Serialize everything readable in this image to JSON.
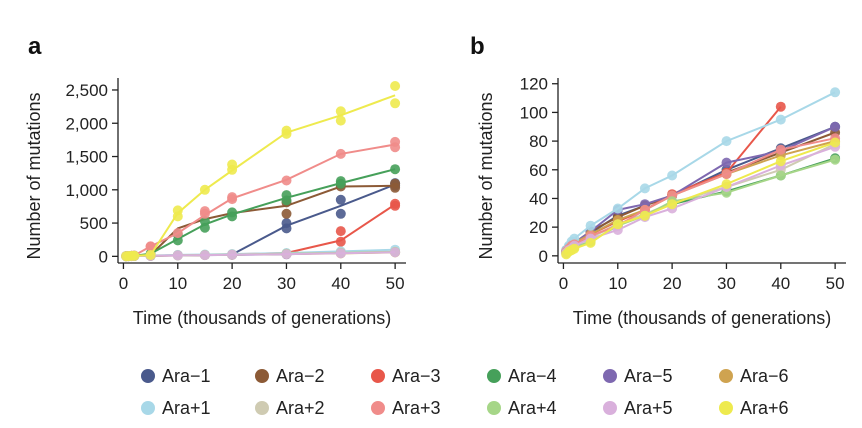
{
  "legend": {
    "rows": [
      [
        {
          "name": "Ara−1",
          "color": "#4a5a8c"
        },
        {
          "name": "Ara−2",
          "color": "#8c5a36"
        },
        {
          "name": "Ara−3",
          "color": "#e8574a"
        },
        {
          "name": "Ara−4",
          "color": "#46a05a"
        },
        {
          "name": "Ara−5",
          "color": "#7e68b0"
        },
        {
          "name": "Ara−6",
          "color": "#cfa350"
        }
      ],
      [
        {
          "name": "Ara+1",
          "color": "#a8d8e8"
        },
        {
          "name": "Ara+2",
          "color": "#cfcbb2"
        },
        {
          "name": "Ara+3",
          "color": "#f08c8a"
        },
        {
          "name": "Ara+4",
          "color": "#a6d688"
        },
        {
          "name": "Ara+5",
          "color": "#d9b0dc"
        },
        {
          "name": "Ara+6",
          "color": "#eeea4e"
        }
      ]
    ]
  },
  "chart_data": [
    {
      "panel": "a",
      "type": "line",
      "xlabel": "Time (thousands of generations)",
      "ylabel": "Number of mutations",
      "xlim": [
        -1,
        52
      ],
      "ylim": [
        -100,
        2680
      ],
      "xticks": [
        0,
        10,
        20,
        30,
        40,
        50
      ],
      "yticks": [
        0,
        500,
        1000,
        1500,
        2000,
        2500
      ],
      "ytick_labels": [
        "0",
        "500",
        "1,000",
        "1,500",
        "2,000",
        "2,500"
      ],
      "x": [
        0.5,
        1,
        1.5,
        2,
        5,
        10,
        15,
        20,
        30,
        40,
        50
      ],
      "series": [
        {
          "name": "Ara−1",
          "color": "#4a5a8c",
          "values": [
            2,
            4,
            5,
            6,
            8,
            12,
            18,
            28,
            460,
            760,
            1080
          ],
          "points": [
            [
              30,
              420
            ],
            [
              30,
              500
            ],
            [
              40,
              640
            ],
            [
              40,
              850
            ],
            [
              50,
              1060
            ],
            [
              50,
              1100
            ]
          ]
        },
        {
          "name": "Ara−2",
          "color": "#8c5a36",
          "values": [
            3,
            5,
            7,
            8,
            20,
            420,
            560,
            650,
            760,
            1050,
            1060
          ],
          "points": [
            [
              30,
              640
            ],
            [
              30,
              810
            ],
            [
              40,
              1050
            ],
            [
              40,
              1080
            ],
            [
              50,
              1030
            ],
            [
              50,
              1090
            ]
          ]
        },
        {
          "name": "Ara−3",
          "color": "#e8574a",
          "values": [
            2,
            3,
            4,
            5,
            8,
            12,
            18,
            30,
            50,
            240,
            780
          ],
          "points": [
            [
              40,
              380
            ],
            [
              40,
              220
            ],
            [
              50,
              760
            ],
            [
              50,
              790
            ]
          ]
        },
        {
          "name": "Ara−4",
          "color": "#46a05a",
          "values": [
            3,
            5,
            7,
            9,
            40,
            260,
            480,
            630,
            880,
            1100,
            1310
          ],
          "points": [
            [
              10,
              240
            ],
            [
              10,
              330
            ],
            [
              15,
              430
            ],
            [
              15,
              530
            ],
            [
              20,
              600
            ],
            [
              20,
              660
            ],
            [
              30,
              840
            ],
            [
              30,
              920
            ],
            [
              40,
              1090
            ],
            [
              40,
              1130
            ],
            [
              50,
              1310
            ]
          ]
        },
        {
          "name": "Ara−5",
          "color": "#7e68b0",
          "values": [
            2,
            3,
            5,
            6,
            10,
            15,
            18,
            22,
            30,
            55,
            65
          ],
          "points": []
        },
        {
          "name": "Ara−6",
          "color": "#cfa350",
          "values": [
            2,
            3,
            5,
            6,
            10,
            15,
            20,
            25,
            35,
            45,
            60
          ],
          "points": []
        },
        {
          "name": "Ara+1",
          "color": "#a8d8e8",
          "values": [
            2,
            4,
            5,
            7,
            12,
            22,
            28,
            35,
            50,
            75,
            100
          ],
          "points": []
        },
        {
          "name": "Ara+2",
          "color": "#cfcbb2",
          "values": [
            2,
            3,
            4,
            6,
            10,
            15,
            20,
            28,
            40,
            55,
            68
          ],
          "points": []
        },
        {
          "name": "Ara+3",
          "color": "#f08c8a",
          "values": [
            3,
            5,
            8,
            12,
            150,
            350,
            620,
            870,
            1150,
            1540,
            1680
          ],
          "points": [
            [
              5,
              150
            ],
            [
              10,
              350
            ],
            [
              15,
              640
            ],
            [
              15,
              680
            ],
            [
              20,
              860
            ],
            [
              20,
              890
            ],
            [
              30,
              1140
            ],
            [
              40,
              1540
            ],
            [
              50,
              1640
            ],
            [
              50,
              1720
            ]
          ]
        },
        {
          "name": "Ara+4",
          "color": "#a6d688",
          "values": [
            2,
            3,
            5,
            6,
            10,
            14,
            20,
            25,
            38,
            50,
            66
          ],
          "points": []
        },
        {
          "name": "Ara+5",
          "color": "#d9b0dc",
          "values": [
            2,
            3,
            4,
            6,
            9,
            14,
            18,
            24,
            34,
            48,
            62
          ],
          "points": []
        },
        {
          "name": "Ara+6",
          "color": "#eeea4e",
          "values": [
            2,
            4,
            6,
            8,
            20,
            650,
            1000,
            1290,
            1860,
            2120,
            2420
          ],
          "points": [
            [
              10,
              600
            ],
            [
              10,
              690
            ],
            [
              15,
              1000
            ],
            [
              20,
              1300
            ],
            [
              20,
              1380
            ],
            [
              30,
              1840
            ],
            [
              30,
              1890
            ],
            [
              40,
              2040
            ],
            [
              40,
              2180
            ],
            [
              50,
              2300
            ],
            [
              50,
              2560
            ]
          ]
        }
      ]
    },
    {
      "panel": "b",
      "type": "line",
      "xlabel": "Time (thousands of generations)",
      "ylabel": "Number of mutations",
      "xlim": [
        -1,
        52
      ],
      "ylim": [
        -5,
        124
      ],
      "xticks": [
        0,
        10,
        20,
        30,
        40,
        50
      ],
      "yticks": [
        0,
        20,
        40,
        60,
        80,
        100,
        120
      ],
      "ytick_labels": [
        "0",
        "20",
        "40",
        "60",
        "80",
        "100",
        "120"
      ],
      "x": [
        0.5,
        1,
        1.5,
        2,
        5,
        10,
        15,
        20,
        30,
        40,
        50
      ],
      "series": [
        {
          "name": "Ara−1",
          "color": "#4a5a8c",
          "values": [
            4,
            6,
            8,
            9,
            16,
            28,
            35,
            42,
            60,
            75,
            90
          ]
        },
        {
          "name": "Ara−2",
          "color": "#8c5a36",
          "values": [
            3,
            5,
            7,
            9,
            17,
            27,
            35,
            42,
            58,
            72,
            86
          ]
        },
        {
          "name": "Ara−3",
          "color": "#e8574a",
          "values": [
            3,
            5,
            7,
            8,
            15,
            24,
            32,
            43,
            58,
            104,
            null
          ]
        },
        {
          "name": "Ara−4",
          "color": "#46a05a",
          "values": [
            2,
            4,
            6,
            7,
            13,
            22,
            29,
            36,
            45,
            56,
            68
          ]
        },
        {
          "name": "Ara−5",
          "color": "#7e68b0",
          "values": [
            3,
            5,
            7,
            9,
            17,
            32,
            36,
            42,
            65,
            73,
            90
          ]
        },
        {
          "name": "Ara−6",
          "color": "#cfa350",
          "values": [
            3,
            5,
            7,
            9,
            15,
            25,
            32,
            42,
            57,
            70,
            80
          ]
        },
        {
          "name": "Ara+1",
          "color": "#a8d8e8",
          "values": [
            4,
            7,
            10,
            12,
            21,
            33,
            47,
            56,
            80,
            95,
            114
          ]
        },
        {
          "name": "Ara+2",
          "color": "#cfcbb2",
          "values": [
            2,
            4,
            6,
            7,
            13,
            22,
            29,
            37,
            48,
            60,
            78
          ]
        },
        {
          "name": "Ara+3",
          "color": "#f08c8a",
          "values": [
            3,
            5,
            7,
            8,
            14,
            21,
            32,
            42,
            57,
            74,
            82
          ]
        },
        {
          "name": "Ara+4",
          "color": "#a6d688",
          "values": [
            2,
            3,
            5,
            6,
            10,
            21,
            28,
            38,
            44,
            56,
            67
          ]
        },
        {
          "name": "Ara+5",
          "color": "#d9b0dc",
          "values": [
            2,
            4,
            5,
            7,
            12,
            18,
            27,
            33,
            48,
            63,
            76
          ]
        },
        {
          "name": "Ara+6",
          "color": "#eeea4e",
          "values": [
            1,
            3,
            4,
            5,
            9,
            22,
            28,
            36,
            50,
            66,
            79
          ]
        }
      ]
    }
  ]
}
